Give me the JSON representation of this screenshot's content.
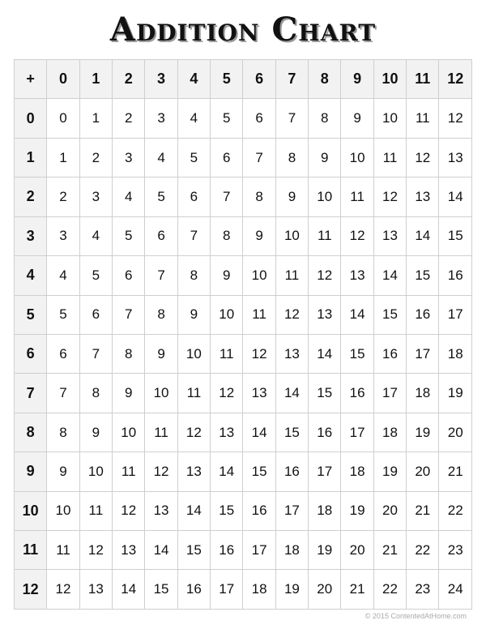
{
  "title": "Addition Chart",
  "corner": "+",
  "header": [
    "0",
    "1",
    "2",
    "3",
    "4",
    "5",
    "6",
    "7",
    "8",
    "9",
    "10",
    "11",
    "12"
  ],
  "rows": [
    {
      "label": "0",
      "values": [
        "0",
        "1",
        "2",
        "3",
        "4",
        "5",
        "6",
        "7",
        "8",
        "9",
        "10",
        "11",
        "12"
      ]
    },
    {
      "label": "1",
      "values": [
        "1",
        "2",
        "3",
        "4",
        "5",
        "6",
        "7",
        "8",
        "9",
        "10",
        "11",
        "12",
        "13"
      ]
    },
    {
      "label": "2",
      "values": [
        "2",
        "3",
        "4",
        "5",
        "6",
        "7",
        "8",
        "9",
        "10",
        "11",
        "12",
        "13",
        "14"
      ]
    },
    {
      "label": "3",
      "values": [
        "3",
        "4",
        "5",
        "6",
        "7",
        "8",
        "9",
        "10",
        "11",
        "12",
        "13",
        "14",
        "15"
      ]
    },
    {
      "label": "4",
      "values": [
        "4",
        "5",
        "6",
        "7",
        "8",
        "9",
        "10",
        "11",
        "12",
        "13",
        "14",
        "15",
        "16"
      ]
    },
    {
      "label": "5",
      "values": [
        "5",
        "6",
        "7",
        "8",
        "9",
        "10",
        "11",
        "12",
        "13",
        "14",
        "15",
        "16",
        "17"
      ]
    },
    {
      "label": "6",
      "values": [
        "6",
        "7",
        "8",
        "9",
        "10",
        "11",
        "12",
        "13",
        "14",
        "15",
        "16",
        "17",
        "18"
      ]
    },
    {
      "label": "7",
      "values": [
        "7",
        "8",
        "9",
        "10",
        "11",
        "12",
        "13",
        "14",
        "15",
        "16",
        "17",
        "18",
        "19"
      ]
    },
    {
      "label": "8",
      "values": [
        "8",
        "9",
        "10",
        "11",
        "12",
        "13",
        "14",
        "15",
        "16",
        "17",
        "18",
        "19",
        "20"
      ]
    },
    {
      "label": "9",
      "values": [
        "9",
        "10",
        "11",
        "12",
        "13",
        "14",
        "15",
        "16",
        "17",
        "18",
        "19",
        "20",
        "21"
      ]
    },
    {
      "label": "10",
      "values": [
        "10",
        "11",
        "12",
        "13",
        "14",
        "15",
        "16",
        "17",
        "18",
        "19",
        "20",
        "21",
        "22"
      ]
    },
    {
      "label": "11",
      "values": [
        "11",
        "12",
        "13",
        "14",
        "15",
        "16",
        "17",
        "18",
        "19",
        "20",
        "21",
        "22",
        "23"
      ]
    },
    {
      "label": "12",
      "values": [
        "12",
        "13",
        "14",
        "15",
        "16",
        "17",
        "18",
        "19",
        "20",
        "21",
        "22",
        "23",
        "24"
      ]
    }
  ],
  "footer": "© 2015 ContentedAtHome.com",
  "colors": {
    "header_bg": "#f2f2f2",
    "grid_line": "#cfcfcf",
    "text": "#111111"
  }
}
